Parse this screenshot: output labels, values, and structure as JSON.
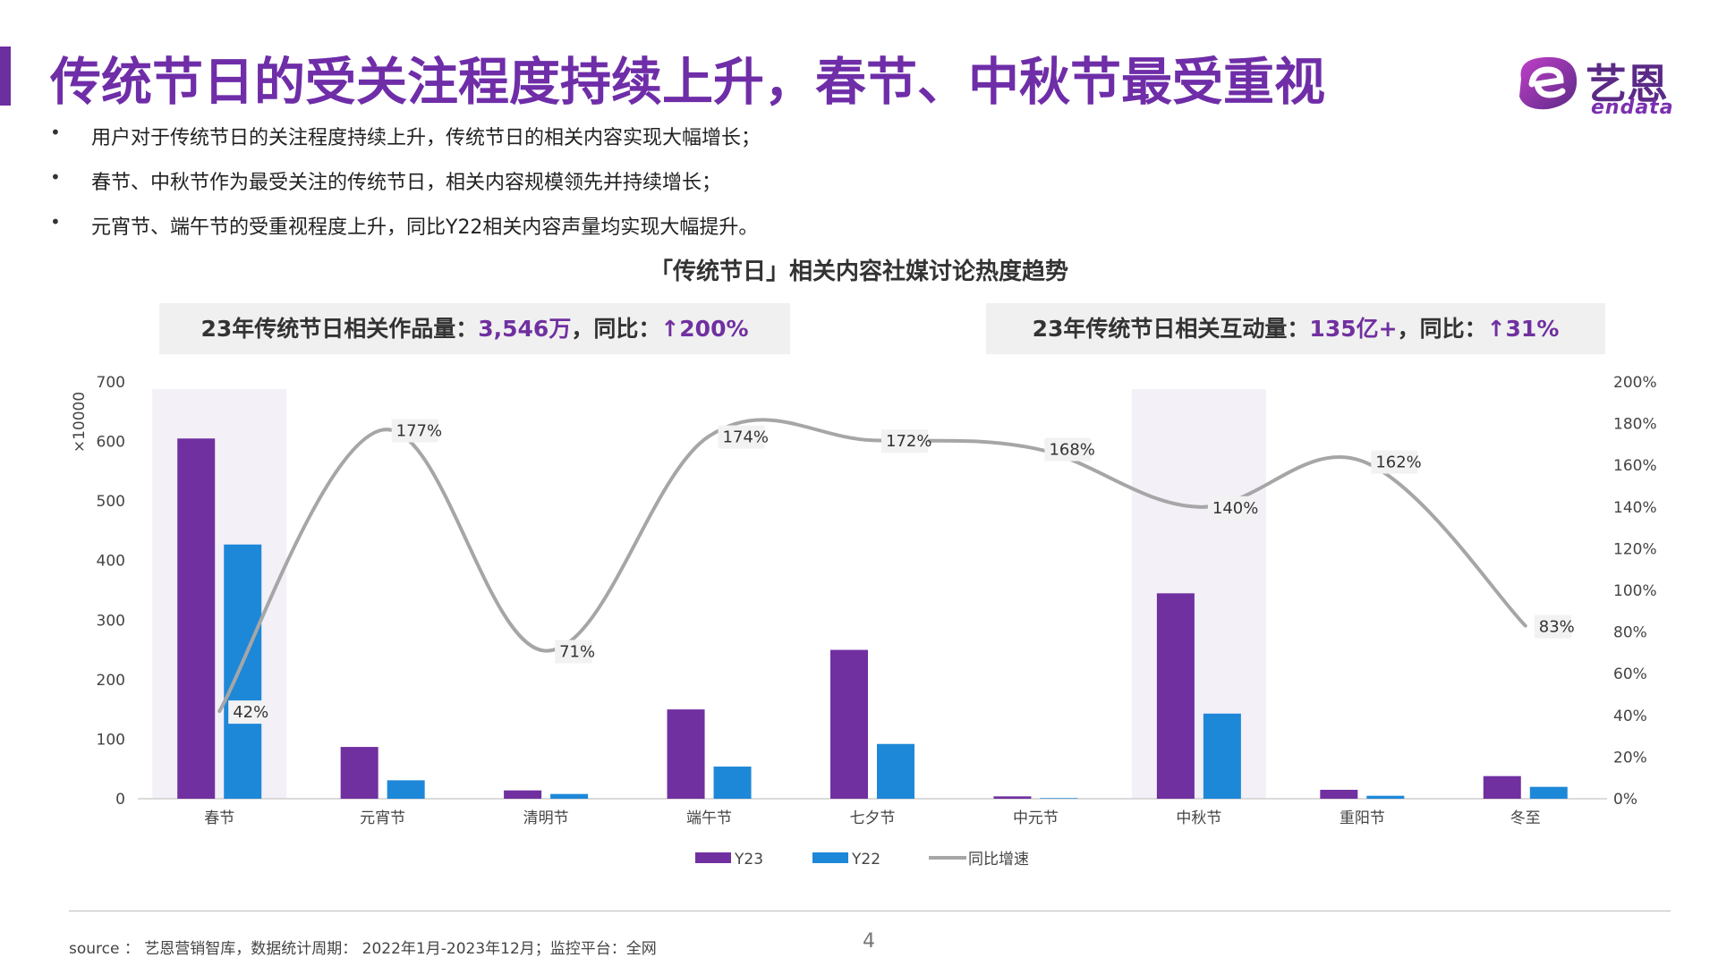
{
  "header": {
    "title": "传统节日的受关注程度持续上升，春节、中秋节最受重视",
    "accent_color": "#6f2da8"
  },
  "logo": {
    "name": "艺恩",
    "sub": "endata",
    "icon": "endata-logo-icon"
  },
  "bullets": [
    "用户对于传统节日的关注程度持续上升，传统节日的相关内容实现大幅增长；",
    "春节、中秋节作为最受关注的传统节日，相关内容规模领先并持续增长；",
    "元宵节、端午节的受重视程度上升，同比Y22相关内容声量均实现大幅提升。"
  ],
  "stats": {
    "left": {
      "prefix": "23年传统节日相关作品量：",
      "value": "3,546万",
      "mid": "，同比：",
      "change": "↑200%"
    },
    "right": {
      "prefix": "23年传统节日相关互动量：",
      "value": "135亿+",
      "mid": "，同比：",
      "change": "↑31%"
    }
  },
  "chart_data": {
    "type": "bar",
    "title": "「传统节日」相关内容社媒讨论热度趋势",
    "categories": [
      "春节",
      "元宵节",
      "清明节",
      "端午节",
      "七夕节",
      "中元节",
      "中秋节",
      "重阳节",
      "冬至"
    ],
    "series": [
      {
        "name": "Y23",
        "type": "bar",
        "color": "#7030a0",
        "values": [
          605,
          87,
          14,
          150,
          250,
          4,
          345,
          15,
          38
        ]
      },
      {
        "name": "Y22",
        "type": "bar",
        "color": "#1e88d8",
        "values": [
          427,
          31,
          8,
          54,
          92,
          1,
          143,
          5,
          20
        ]
      },
      {
        "name": "同比增速",
        "type": "line",
        "axis": "right",
        "color": "#a6a6a6",
        "values": [
          42,
          177,
          71,
          174,
          172,
          168,
          140,
          162,
          83
        ],
        "labels": [
          "42%",
          "177%",
          "71%",
          "174%",
          "172%",
          "168%",
          "140%",
          "162%",
          "83%"
        ]
      }
    ],
    "y_left": {
      "unit": "×10000",
      "ylim": [
        0,
        700
      ],
      "ticks": [
        0,
        100,
        200,
        300,
        400,
        500,
        600,
        700
      ]
    },
    "y_right": {
      "ylim": [
        0,
        200
      ],
      "ticks": [
        "0%",
        "20%",
        "40%",
        "60%",
        "80%",
        "100%",
        "120%",
        "140%",
        "160%",
        "180%",
        "200%"
      ]
    },
    "highlighted_categories": [
      "春节",
      "中秋节"
    ],
    "highlight_color": "#f3f0f8",
    "legend_position": "bottom",
    "grid": false
  },
  "footer": {
    "source": "source ： 艺恩营销智库，数据统计周期： 2022年1月-2023年12月；监控平台：全网",
    "page": "4"
  }
}
